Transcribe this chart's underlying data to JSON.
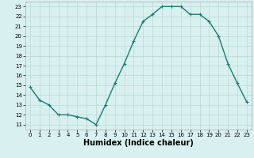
{
  "x": [
    0,
    1,
    2,
    3,
    4,
    5,
    6,
    7,
    8,
    9,
    10,
    11,
    12,
    13,
    14,
    15,
    16,
    17,
    18,
    19,
    20,
    21,
    22,
    23
  ],
  "y": [
    14.8,
    13.5,
    13.0,
    12.0,
    12.0,
    11.8,
    11.6,
    11.0,
    13.0,
    15.2,
    17.2,
    19.5,
    21.5,
    22.2,
    23.0,
    23.0,
    23.0,
    22.2,
    22.2,
    21.5,
    20.0,
    17.2,
    15.2,
    13.3
  ],
  "line_color": "#1a7a6e",
  "marker": "+",
  "markersize": 3,
  "linewidth": 1.0,
  "xlabel": "Humidex (Indice chaleur)",
  "xlabel_fontsize": 7,
  "tick_fontsize": 5,
  "ylabel_ticks": [
    11,
    12,
    13,
    14,
    15,
    16,
    17,
    18,
    19,
    20,
    21,
    22,
    23
  ],
  "xlim": [
    -0.5,
    23.5
  ],
  "ylim": [
    10.5,
    23.5
  ],
  "bg_color": "#d8f0f0",
  "grid_color": "#b8d8d8"
}
